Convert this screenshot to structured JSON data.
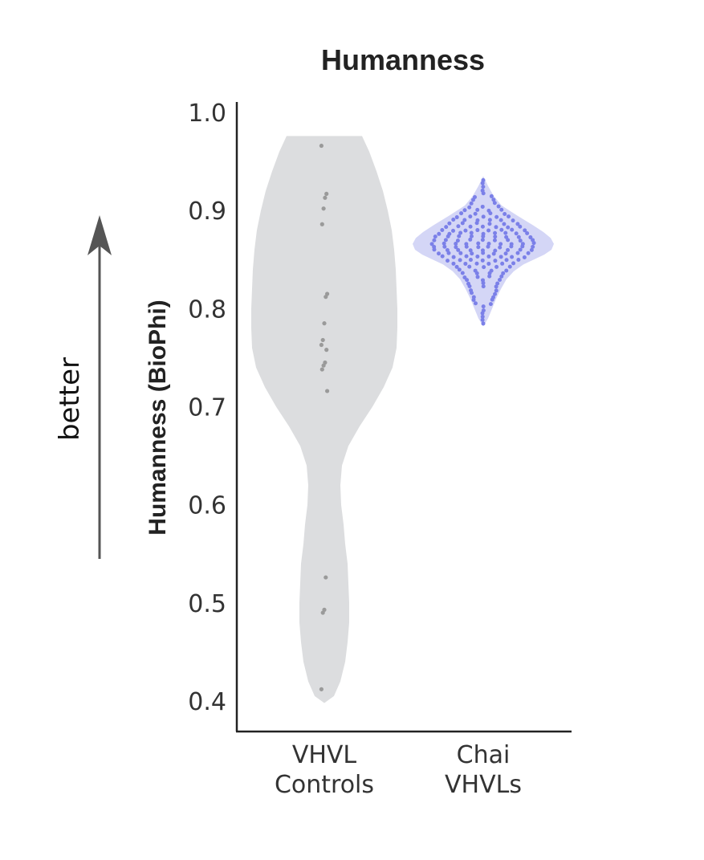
{
  "chart_data": {
    "type": "violin",
    "title": "Humanness",
    "ylabel": "Humanness (BioPhi)",
    "xlabel": "",
    "ylim": [
      0.4,
      1.0
    ],
    "yticks": [
      "1.0",
      "0.9",
      "0.8",
      "0.7",
      "0.6",
      "0.5",
      "0.4"
    ],
    "side_annotation": "better",
    "grid": false,
    "categories": [
      {
        "line1": "VHVL",
        "line2": "Controls"
      },
      {
        "line1": "Chai",
        "line2": "VHVLs"
      }
    ],
    "series": [
      {
        "category": "VHVL Controls",
        "color": "#dcdddf",
        "point_color": "#9a9a9a",
        "values": [
          0.966,
          0.917,
          0.913,
          0.902,
          0.886,
          0.815,
          0.812,
          0.785,
          0.768,
          0.763,
          0.758,
          0.745,
          0.742,
          0.738,
          0.716,
          0.526,
          0.493,
          0.49,
          0.412
        ]
      },
      {
        "category": "Chai VHVLs",
        "color": "#d4d6f6",
        "point_color": "#7b80e8",
        "range": [
          0.783,
          0.933
        ],
        "median": 0.87
      }
    ]
  }
}
